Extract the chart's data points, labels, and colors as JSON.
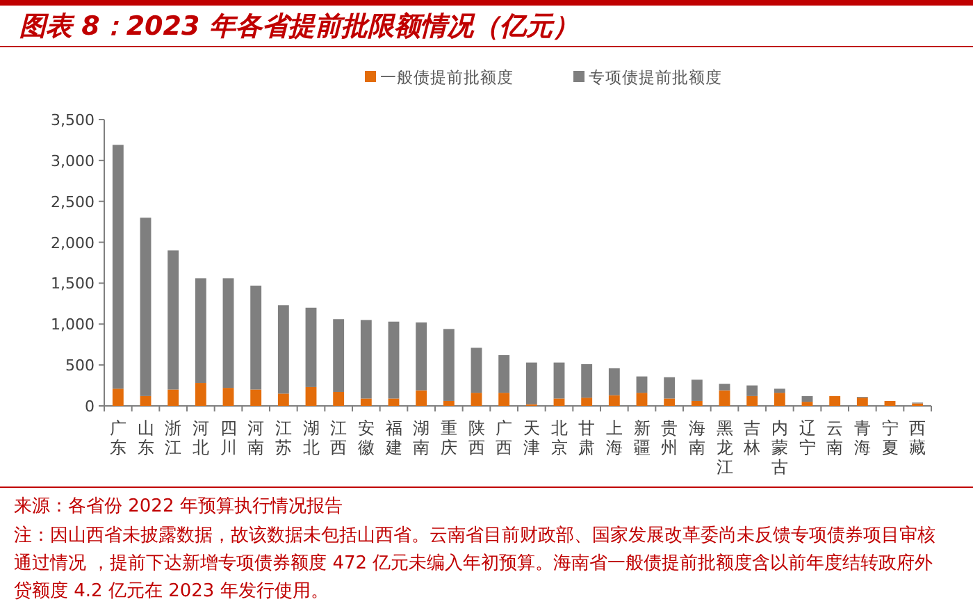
{
  "chart_data": {
    "type": "bar",
    "stacked": true,
    "title": "图表 8：2023 年各省提前批限额情况（亿元）",
    "categories": [
      "广东",
      "山东",
      "浙江",
      "河北",
      "四川",
      "河南",
      "江苏",
      "湖北",
      "江西",
      "安徽",
      "福建",
      "湖南",
      "重庆",
      "陕西",
      "广西",
      "天津",
      "北京",
      "甘肃",
      "上海",
      "新疆",
      "贵州",
      "海南",
      "黑龙江",
      "吉林",
      "内蒙古",
      "辽宁",
      "云南",
      "青海",
      "宁夏",
      "西藏"
    ],
    "series": [
      {
        "name": "一般债提前批额度",
        "color": "#e36c0a",
        "values": [
          210,
          120,
          200,
          280,
          220,
          200,
          150,
          230,
          170,
          90,
          90,
          190,
          60,
          160,
          160,
          20,
          90,
          100,
          130,
          160,
          90,
          60,
          190,
          120,
          160,
          50,
          120,
          100,
          60,
          30
        ]
      },
      {
        "name": "专项债提前批额度",
        "color": "#7f7f7f",
        "values": [
          2980,
          2180,
          1700,
          1280,
          1340,
          1270,
          1080,
          970,
          890,
          960,
          940,
          830,
          880,
          550,
          460,
          510,
          440,
          410,
          330,
          200,
          260,
          260,
          80,
          130,
          50,
          70,
          0,
          10,
          0,
          10
        ]
      }
    ],
    "ylim": [
      0,
      3500
    ],
    "yticks": [
      {
        "value": 0,
        "label": "0"
      },
      {
        "value": 500,
        "label": "500"
      },
      {
        "value": 1000,
        "label": "1,000"
      },
      {
        "value": 1500,
        "label": "1,500"
      },
      {
        "value": 2000,
        "label": "2,000"
      },
      {
        "value": 2500,
        "label": "2,500"
      },
      {
        "value": 3000,
        "label": "3,000"
      },
      {
        "value": 3500,
        "label": "3,500"
      }
    ],
    "legend": "top",
    "grid": false,
    "annotations": [
      "来源：各省份 2022 年预算执行情况报告",
      "注：因山西省未披露数据，故该数据未包括山西省。云南省目前财政部、国家发展改革委尚未反馈专项债券项目审核通过情况 ，提前下达新增专项债券额度 472 亿元未编入年初预算。海南省一般债提前批额度含以前年度结转政府外贷额度 4.2 亿元在 2023 年发行使用。"
    ]
  }
}
